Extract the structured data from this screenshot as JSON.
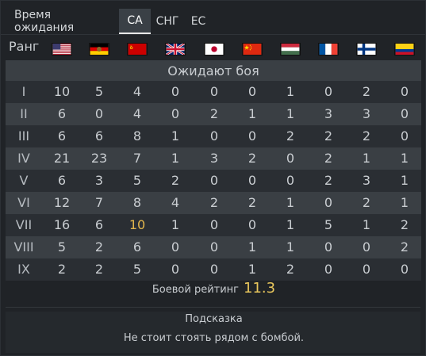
{
  "tabs": [
    {
      "label": "Время ожидания",
      "active": false
    },
    {
      "label": "СА",
      "active": true
    },
    {
      "label": "СНГ",
      "active": false
    },
    {
      "label": "ЕС",
      "active": false
    }
  ],
  "header": {
    "rank_label": "Ранг",
    "flags": [
      "usa-flag",
      "gdr-flag",
      "ussr-flag",
      "uk-flag",
      "japan-flag",
      "china-flag",
      "hungary-flag",
      "france-flag",
      "finland-flag",
      "colombia-flag"
    ]
  },
  "banner": "Ожидают боя",
  "rows": [
    {
      "rank": "I",
      "values": [
        "10",
        "5",
        "4",
        "0",
        "0",
        "0",
        "1",
        "0",
        "2",
        "0"
      ]
    },
    {
      "rank": "II",
      "values": [
        "6",
        "0",
        "4",
        "0",
        "2",
        "1",
        "1",
        "3",
        "3",
        "0"
      ]
    },
    {
      "rank": "III",
      "values": [
        "6",
        "6",
        "8",
        "1",
        "0",
        "0",
        "2",
        "2",
        "2",
        "0"
      ]
    },
    {
      "rank": "IV",
      "values": [
        "21",
        "23",
        "7",
        "1",
        "3",
        "2",
        "0",
        "2",
        "1",
        "1"
      ]
    },
    {
      "rank": "V",
      "values": [
        "6",
        "3",
        "5",
        "2",
        "0",
        "0",
        "0",
        "2",
        "3",
        "1"
      ]
    },
    {
      "rank": "VI",
      "values": [
        "12",
        "7",
        "8",
        "4",
        "2",
        "2",
        "1",
        "0",
        "2",
        "1"
      ]
    },
    {
      "rank": "VII",
      "values": [
        "16",
        "6",
        "10",
        "1",
        "0",
        "0",
        "1",
        "5",
        "1",
        "2"
      ]
    },
    {
      "rank": "VIII",
      "values": [
        "5",
        "2",
        "6",
        "0",
        "0",
        "1",
        "1",
        "0",
        "0",
        "2"
      ]
    },
    {
      "rank": "IX",
      "values": [
        "2",
        "2",
        "5",
        "0",
        "0",
        "1",
        "2",
        "0",
        "0",
        "0"
      ]
    }
  ],
  "highlight": {
    "row": 6,
    "col": 2,
    "color": "#e2b64d"
  },
  "rating": {
    "label": "Боевой рейтинг",
    "value": "11.3"
  },
  "hint": {
    "title": "Подсказка",
    "text": "Не стоит стоять рядом с бомбой."
  },
  "colors": {
    "accent": "#e8c65c",
    "row_odd": "#2a2e33",
    "row_even": "#3a3f44"
  }
}
